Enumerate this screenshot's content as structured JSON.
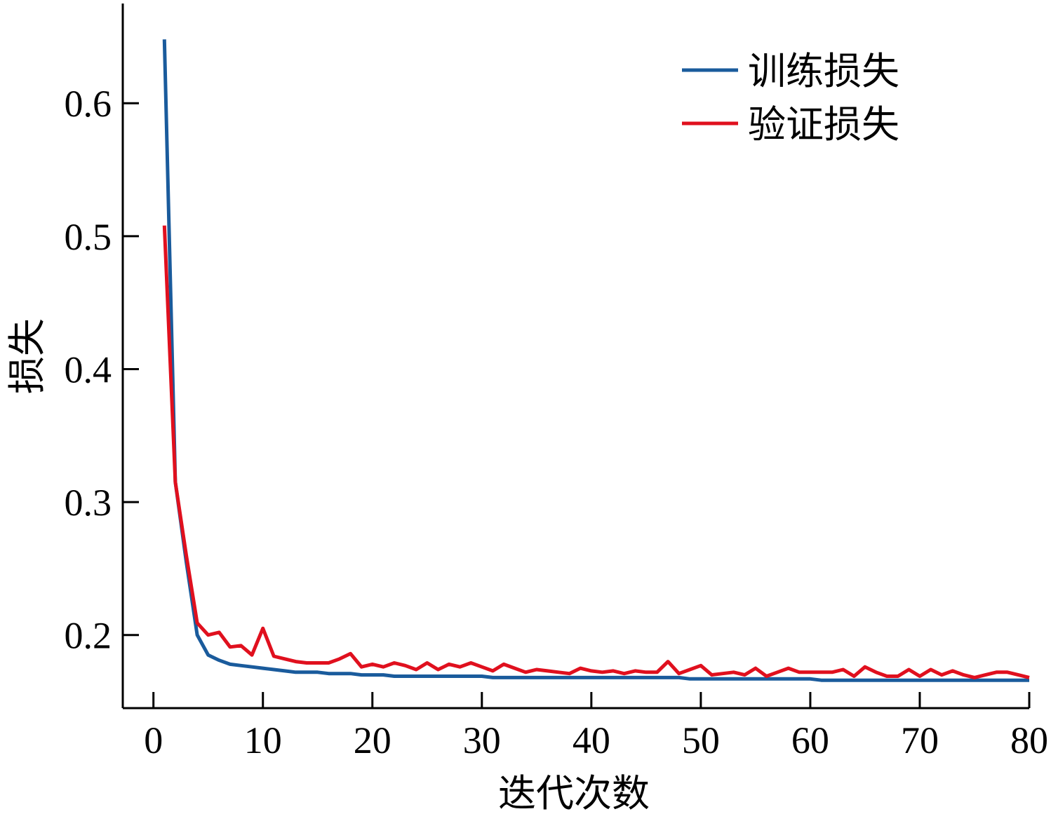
{
  "chart_data": {
    "type": "line",
    "xlabel": "迭代次数",
    "ylabel": "损失",
    "xlim": [
      -2.8,
      80
    ],
    "ylim": [
      0.145,
      0.675
    ],
    "xticks": [
      0,
      10,
      20,
      30,
      40,
      50,
      60,
      70,
      80
    ],
    "yticks": [
      0.2,
      0.3,
      0.4,
      0.5,
      0.6
    ],
    "xtick_labels": [
      "0",
      "10",
      "20",
      "30",
      "40",
      "50",
      "60",
      "70",
      "80"
    ],
    "ytick_labels": [
      "0.2",
      "0.3",
      "0.4",
      "0.5",
      "0.6"
    ],
    "grid": false,
    "legend_position": "top-right",
    "series": [
      {
        "name": "训练损失",
        "color": "#1a5b9c",
        "x": [
          1,
          2,
          3,
          4,
          5,
          6,
          7,
          8,
          9,
          10,
          11,
          12,
          13,
          14,
          15,
          16,
          17,
          18,
          19,
          20,
          21,
          22,
          23,
          24,
          25,
          26,
          27,
          28,
          29,
          30,
          31,
          32,
          33,
          34,
          35,
          36,
          37,
          38,
          39,
          40,
          41,
          42,
          43,
          44,
          45,
          46,
          47,
          48,
          49,
          50,
          51,
          52,
          53,
          54,
          55,
          56,
          57,
          58,
          59,
          60,
          61,
          62,
          63,
          64,
          65,
          66,
          67,
          68,
          69,
          70,
          71,
          72,
          73,
          74,
          75,
          76,
          77,
          78,
          79,
          80
        ],
        "values": [
          0.648,
          0.315,
          0.255,
          0.2,
          0.185,
          0.181,
          0.178,
          0.177,
          0.176,
          0.175,
          0.174,
          0.173,
          0.172,
          0.172,
          0.172,
          0.171,
          0.171,
          0.171,
          0.17,
          0.17,
          0.17,
          0.169,
          0.169,
          0.169,
          0.169,
          0.169,
          0.169,
          0.169,
          0.169,
          0.169,
          0.168,
          0.168,
          0.168,
          0.168,
          0.168,
          0.168,
          0.168,
          0.168,
          0.168,
          0.168,
          0.168,
          0.168,
          0.168,
          0.168,
          0.168,
          0.168,
          0.168,
          0.168,
          0.167,
          0.167,
          0.167,
          0.167,
          0.167,
          0.167,
          0.167,
          0.167,
          0.167,
          0.167,
          0.167,
          0.167,
          0.166,
          0.166,
          0.166,
          0.166,
          0.166,
          0.166,
          0.166,
          0.166,
          0.166,
          0.166,
          0.166,
          0.166,
          0.166,
          0.166,
          0.166,
          0.166,
          0.166,
          0.166,
          0.166,
          0.166
        ]
      },
      {
        "name": "验证损失",
        "color": "#e0101e",
        "x": [
          1,
          2,
          3,
          4,
          5,
          6,
          7,
          8,
          9,
          10,
          11,
          12,
          13,
          14,
          15,
          16,
          17,
          18,
          19,
          20,
          21,
          22,
          23,
          24,
          25,
          26,
          27,
          28,
          29,
          30,
          31,
          32,
          33,
          34,
          35,
          36,
          37,
          38,
          39,
          40,
          41,
          42,
          43,
          44,
          45,
          46,
          47,
          48,
          49,
          50,
          51,
          52,
          53,
          54,
          55,
          56,
          57,
          58,
          59,
          60,
          61,
          62,
          63,
          64,
          65,
          66,
          67,
          68,
          69,
          70,
          71,
          72,
          73,
          74,
          75,
          76,
          77,
          78,
          79,
          80
        ],
        "values": [
          0.508,
          0.315,
          0.26,
          0.209,
          0.2,
          0.202,
          0.191,
          0.192,
          0.185,
          0.205,
          0.184,
          0.182,
          0.18,
          0.179,
          0.179,
          0.179,
          0.182,
          0.186,
          0.176,
          0.178,
          0.176,
          0.179,
          0.177,
          0.174,
          0.179,
          0.174,
          0.178,
          0.176,
          0.179,
          0.176,
          0.173,
          0.178,
          0.175,
          0.172,
          0.174,
          0.173,
          0.172,
          0.171,
          0.175,
          0.173,
          0.172,
          0.173,
          0.171,
          0.173,
          0.172,
          0.172,
          0.18,
          0.171,
          0.174,
          0.177,
          0.17,
          0.171,
          0.172,
          0.17,
          0.175,
          0.169,
          0.172,
          0.175,
          0.172,
          0.172,
          0.172,
          0.172,
          0.174,
          0.169,
          0.176,
          0.172,
          0.169,
          0.169,
          0.174,
          0.169,
          0.174,
          0.17,
          0.173,
          0.17,
          0.168,
          0.17,
          0.172,
          0.172,
          0.17,
          0.168
        ]
      }
    ]
  }
}
